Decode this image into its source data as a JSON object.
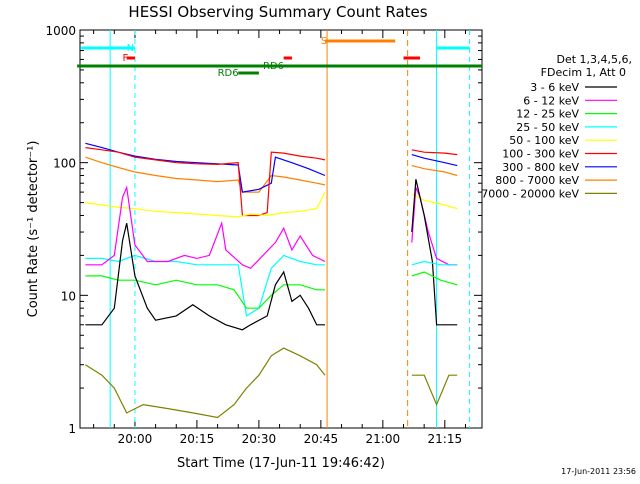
{
  "chart_data": {
    "type": "line",
    "title": "HESSI Observing Summary Count Rates",
    "xlabel": "Start Time (17-Jun-11 19:46:42)",
    "ylabel": "Count Rate (s⁻¹ detector⁻¹)",
    "y_scale": "log",
    "ylim": [
      1,
      1000
    ],
    "xlim": [
      "19:46:42",
      "21:24:00"
    ],
    "x_ticks": [
      "20:00",
      "20:15",
      "20:30",
      "20:45",
      "21:00",
      "21:15"
    ],
    "y_ticks": [
      "1",
      "10",
      "100",
      "1000"
    ],
    "grid": false,
    "timestamp": "17-Jun-2011 23:56",
    "legend": {
      "placement": "right",
      "header": [
        "Det 1,3,4,5,6,",
        "FDecim 1, Att 0"
      ]
    },
    "gaps": [
      [
        "20:46:30",
        "21:06:00"
      ]
    ],
    "series": [
      {
        "name": "3 - 6 keV",
        "color": "#000000",
        "points": [
          [
            "19:48",
            6
          ],
          [
            "19:52",
            6
          ],
          [
            "19:55",
            8
          ],
          [
            "19:57",
            26
          ],
          [
            "19:58",
            35
          ],
          [
            "20:00",
            14
          ],
          [
            "20:03",
            8
          ],
          [
            "20:05",
            6.5
          ],
          [
            "20:10",
            7
          ],
          [
            "20:14",
            8.5
          ],
          [
            "20:18",
            7
          ],
          [
            "20:22",
            6
          ],
          [
            "20:26",
            5.5
          ],
          [
            "20:28",
            6
          ],
          [
            "20:32",
            7
          ],
          [
            "20:34",
            12
          ],
          [
            "20:36",
            15
          ],
          [
            "20:38",
            9
          ],
          [
            "20:40",
            10
          ],
          [
            "20:42",
            8
          ],
          [
            "20:44",
            6
          ],
          [
            "20:46",
            6
          ]
        ]
      },
      {
        "name": "6 - 12 keV",
        "color": "#ff00ff",
        "points": [
          [
            "19:48",
            17
          ],
          [
            "19:52",
            17
          ],
          [
            "19:55",
            20
          ],
          [
            "19:57",
            55
          ],
          [
            "19:58",
            65
          ],
          [
            "20:00",
            24
          ],
          [
            "20:03",
            18
          ],
          [
            "20:08",
            18
          ],
          [
            "20:12",
            20
          ],
          [
            "20:15",
            19
          ],
          [
            "20:18",
            20
          ],
          [
            "20:21",
            35
          ],
          [
            "20:22",
            22
          ],
          [
            "20:26",
            17
          ],
          [
            "20:28",
            16
          ],
          [
            "20:31",
            20
          ],
          [
            "20:34",
            25
          ],
          [
            "20:36",
            32
          ],
          [
            "20:38",
            22
          ],
          [
            "20:40",
            28
          ],
          [
            "20:43",
            20
          ],
          [
            "20:46",
            18
          ]
        ]
      },
      {
        "name": "12 - 25 keV",
        "color": "#00ff00",
        "points": [
          [
            "19:48",
            14
          ],
          [
            "19:52",
            14
          ],
          [
            "19:56",
            13
          ],
          [
            "20:00",
            13
          ],
          [
            "20:05",
            12
          ],
          [
            "20:10",
            13
          ],
          [
            "20:15",
            12
          ],
          [
            "20:20",
            12
          ],
          [
            "20:24",
            11
          ],
          [
            "20:27",
            8
          ],
          [
            "20:30",
            8
          ],
          [
            "20:33",
            10
          ],
          [
            "20:36",
            12
          ],
          [
            "20:40",
            12
          ],
          [
            "20:44",
            11
          ],
          [
            "20:46",
            11
          ]
        ]
      },
      {
        "name": "25 - 50 keV",
        "color": "#00ffff",
        "points": [
          [
            "19:48",
            19
          ],
          [
            "19:52",
            19
          ],
          [
            "19:56",
            18
          ],
          [
            "20:00",
            20
          ],
          [
            "20:05",
            18
          ],
          [
            "20:10",
            18
          ],
          [
            "20:15",
            17
          ],
          [
            "20:20",
            17
          ],
          [
            "20:25",
            17
          ],
          [
            "20:27",
            7
          ],
          [
            "20:30",
            8
          ],
          [
            "20:33",
            16
          ],
          [
            "20:36",
            20
          ],
          [
            "20:40",
            18
          ],
          [
            "20:44",
            17
          ],
          [
            "20:46",
            17
          ]
        ]
      },
      {
        "name": "50 - 100 keV",
        "color": "#ffff00",
        "points": [
          [
            "19:48",
            50
          ],
          [
            "19:52",
            48
          ],
          [
            "19:56",
            46
          ],
          [
            "20:00",
            45
          ],
          [
            "20:05",
            43
          ],
          [
            "20:10",
            42
          ],
          [
            "20:15",
            41
          ],
          [
            "20:20",
            40
          ],
          [
            "20:25",
            39
          ],
          [
            "20:28",
            41
          ],
          [
            "20:32",
            40
          ],
          [
            "20:36",
            42
          ],
          [
            "20:40",
            43
          ],
          [
            "20:44",
            45
          ],
          [
            "20:46",
            60
          ]
        ]
      },
      {
        "name": "100 - 300 keV",
        "color": "#ff0000",
        "points": [
          [
            "19:48",
            130
          ],
          [
            "19:52",
            125
          ],
          [
            "19:56",
            120
          ],
          [
            "20:00",
            110
          ],
          [
            "20:05",
            105
          ],
          [
            "20:10",
            100
          ],
          [
            "20:15",
            98
          ],
          [
            "20:20",
            97
          ],
          [
            "20:25",
            100
          ],
          [
            "20:26",
            40
          ],
          [
            "20:30",
            40
          ],
          [
            "20:32",
            42
          ],
          [
            "20:33",
            120
          ],
          [
            "20:36",
            118
          ],
          [
            "20:40",
            112
          ],
          [
            "20:44",
            108
          ],
          [
            "20:46",
            105
          ]
        ]
      },
      {
        "name": "300 - 800 keV",
        "color": "#0000ff",
        "points": [
          [
            "19:48",
            140
          ],
          [
            "19:52",
            130
          ],
          [
            "19:56",
            120
          ],
          [
            "20:00",
            112
          ],
          [
            "20:05",
            106
          ],
          [
            "20:10",
            102
          ],
          [
            "20:15",
            100
          ],
          [
            "20:20",
            98
          ],
          [
            "20:25",
            96
          ],
          [
            "20:26",
            60
          ],
          [
            "20:30",
            63
          ],
          [
            "20:33",
            70
          ],
          [
            "20:34",
            110
          ],
          [
            "20:38",
            100
          ],
          [
            "20:42",
            90
          ],
          [
            "20:46",
            80
          ]
        ]
      },
      {
        "name": "800 - 7000 keV",
        "color": "#ff8000",
        "points": [
          [
            "19:48",
            110
          ],
          [
            "19:52",
            100
          ],
          [
            "19:56",
            92
          ],
          [
            "20:00",
            85
          ],
          [
            "20:05",
            80
          ],
          [
            "20:10",
            76
          ],
          [
            "20:15",
            74
          ],
          [
            "20:20",
            72
          ],
          [
            "20:25",
            74
          ],
          [
            "20:26",
            60
          ],
          [
            "20:30",
            60
          ],
          [
            "20:33",
            80
          ],
          [
            "20:36",
            78
          ],
          [
            "20:40",
            74
          ],
          [
            "20:44",
            70
          ],
          [
            "20:46",
            68
          ]
        ]
      },
      {
        "name": "7000 - 20000 keV",
        "color": "#808000",
        "points": [
          [
            "19:48",
            3
          ],
          [
            "19:52",
            2.5
          ],
          [
            "19:55",
            2
          ],
          [
            "19:58",
            1.3
          ],
          [
            "20:02",
            1.5
          ],
          [
            "20:08",
            1.4
          ],
          [
            "20:14",
            1.3
          ],
          [
            "20:20",
            1.2
          ],
          [
            "20:24",
            1.5
          ],
          [
            "20:27",
            2
          ],
          [
            "20:30",
            2.5
          ],
          [
            "20:33",
            3.5
          ],
          [
            "20:36",
            4
          ],
          [
            "20:40",
            3.5
          ],
          [
            "20:44",
            3
          ],
          [
            "20:46",
            2.5
          ]
        ]
      }
    ],
    "series_after_gap": [
      {
        "name": "100 - 300 keV",
        "points": [
          [
            "21:07",
            125
          ],
          [
            "21:10",
            120
          ],
          [
            "21:15",
            118
          ],
          [
            "21:18",
            115
          ]
        ]
      },
      {
        "name": "300 - 800 keV",
        "points": [
          [
            "21:07",
            115
          ],
          [
            "21:10",
            108
          ],
          [
            "21:15",
            100
          ],
          [
            "21:18",
            95
          ]
        ]
      },
      {
        "name": "800 - 7000 keV",
        "points": [
          [
            "21:07",
            95
          ],
          [
            "21:10",
            90
          ],
          [
            "21:15",
            85
          ],
          [
            "21:18",
            80
          ]
        ]
      },
      {
        "name": "50 - 100 keV",
        "points": [
          [
            "21:07",
            58
          ],
          [
            "21:10",
            52
          ],
          [
            "21:15",
            48
          ],
          [
            "21:18",
            45
          ]
        ]
      },
      {
        "name": "6 - 12 keV",
        "points": [
          [
            "21:07",
            25
          ],
          [
            "21:08",
            65
          ],
          [
            "21:09",
            55
          ],
          [
            "21:11",
            30
          ],
          [
            "21:13",
            19
          ],
          [
            "21:16",
            17
          ],
          [
            "21:18",
            17
          ]
        ]
      },
      {
        "name": "3 - 6 keV",
        "points": [
          [
            "21:07",
            30
          ],
          [
            "21:08",
            75
          ],
          [
            "21:10",
            40
          ],
          [
            "21:12",
            18
          ],
          [
            "21:13",
            6
          ],
          [
            "21:16",
            6
          ],
          [
            "21:18",
            6
          ]
        ]
      },
      {
        "name": "25 - 50 keV",
        "points": [
          [
            "21:07",
            17
          ],
          [
            "21:10",
            18
          ],
          [
            "21:14",
            17
          ],
          [
            "21:18",
            17
          ]
        ]
      },
      {
        "name": "12 - 25 keV",
        "points": [
          [
            "21:07",
            14
          ],
          [
            "21:10",
            15
          ],
          [
            "21:14",
            13
          ],
          [
            "21:18",
            12
          ]
        ]
      },
      {
        "name": "7000 - 20000 keV",
        "points": [
          [
            "21:07",
            2.5
          ],
          [
            "21:10",
            2.5
          ],
          [
            "21:13",
            1.5
          ],
          [
            "21:16",
            2.5
          ],
          [
            "21:18",
            2.5
          ]
        ]
      }
    ],
    "annotations": [
      {
        "label": "N",
        "color": "#00ffff",
        "start": "19:47",
        "end": "20:00"
      },
      {
        "label": "N",
        "color": "#00ffff",
        "start": "21:13",
        "end": "21:21"
      },
      {
        "label": "S",
        "color": "#ff8000",
        "start": "20:46",
        "end": "21:03"
      },
      {
        "label": "F",
        "color": "#ff0000",
        "start": "19:58",
        "end": "20:00"
      },
      {
        "label": "F",
        "color": "#ff0000",
        "start": "20:36",
        "end": "20:38"
      },
      {
        "label": "F",
        "color": "#ff0000",
        "start": "21:05",
        "end": "21:09"
      },
      {
        "label": "RD6",
        "color": "#008000",
        "start": "19:46",
        "end": "21:24"
      },
      {
        "label": "RD6",
        "color": "#008000",
        "start": "20:25",
        "end": "20:30"
      }
    ],
    "annotation_text": {
      "n_label": "N",
      "s_label": "S",
      "f_label": "F",
      "rd6_label_top": "RD6",
      "rd6_label_bottom": "RD6"
    }
  }
}
